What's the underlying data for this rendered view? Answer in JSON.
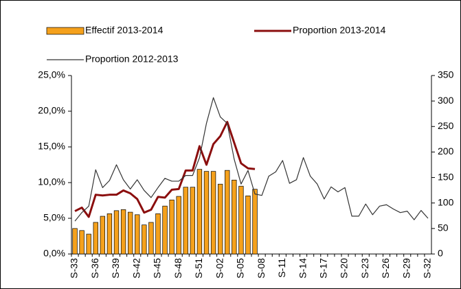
{
  "chart_data": {
    "type": "bar",
    "categories": [
      "S-33",
      null,
      null,
      "S-36",
      null,
      null,
      "S-39",
      null,
      null,
      "S-42",
      null,
      null,
      "S-45",
      null,
      null,
      "S-48",
      null,
      null,
      "S-51",
      null,
      null,
      "S-02",
      null,
      null,
      "S-05",
      null,
      null,
      "S-08",
      null,
      null,
      "S-11",
      null,
      null,
      "S-14",
      null,
      null,
      "S-17",
      null,
      null,
      "S-20",
      null,
      null,
      "S-23",
      null,
      null,
      "S-26",
      null,
      null,
      "S-29",
      null,
      null,
      "S-32"
    ],
    "series": [
      {
        "name": "Effectif 2013-2014",
        "type": "bar",
        "axis": "y2",
        "color": "#f5a11c",
        "values": [
          50,
          46,
          39,
          62,
          74,
          79,
          85,
          87,
          82,
          77,
          57,
          62,
          79,
          94,
          106,
          113,
          131,
          131,
          166,
          162,
          162,
          137,
          164,
          145,
          133,
          114,
          127,
          null,
          null,
          null,
          null,
          null,
          null,
          null,
          null,
          null,
          null,
          null,
          null,
          null,
          null,
          null,
          null,
          null,
          null,
          null,
          null,
          null,
          null,
          null,
          null,
          null
        ]
      },
      {
        "name": "Proportion 2013-2014",
        "type": "line",
        "color": "#8b0e0e",
        "values": [
          6.0,
          6.5,
          5.2,
          8.3,
          8.2,
          8.3,
          8.3,
          8.9,
          8.5,
          7.7,
          5.8,
          6.2,
          8.0,
          7.9,
          9.0,
          9.1,
          11.7,
          11.7,
          15.1,
          12.5,
          15.4,
          16.5,
          18.5,
          15.6,
          12.7,
          12.0,
          11.9,
          null,
          null,
          null,
          null,
          null,
          null,
          null,
          null,
          null,
          null,
          null,
          null,
          null,
          null,
          null,
          null,
          null,
          null,
          null,
          null,
          null,
          null,
          null,
          null,
          null
        ]
      },
      {
        "name": "Proportion 2012-2013",
        "type": "line",
        "color": "#333333",
        "values": [
          4.6,
          5.8,
          6.7,
          11.8,
          9.3,
          10.3,
          12.5,
          10.4,
          9.1,
          10.4,
          8.9,
          7.9,
          9.3,
          10.6,
          10.2,
          10.2,
          11.0,
          11.0,
          13.5,
          18.3,
          21.9,
          19.2,
          18.3,
          13.3,
          9.8,
          11.7,
          8.4,
          8.2,
          10.9,
          11.5,
          13.1,
          9.9,
          10.4,
          13.5,
          10.9,
          9.8,
          7.7,
          9.4,
          8.7,
          9.3,
          5.3,
          5.3,
          7.0,
          5.5,
          6.7,
          6.9,
          6.3,
          5.8,
          6.0,
          4.8,
          6.1,
          5.0
        ]
      }
    ],
    "ylim": [
      0,
      25
    ],
    "yticks": [
      {
        "value": 0,
        "label": "0,0%"
      },
      {
        "value": 5,
        "label": "5,0%"
      },
      {
        "value": 10,
        "label": "10,0%"
      },
      {
        "value": 15,
        "label": "15,0%"
      },
      {
        "value": 20,
        "label": "20,0%"
      },
      {
        "value": 25,
        "label": "25,0%"
      }
    ],
    "y2lim": [
      0,
      350
    ],
    "y2ticks": [
      0,
      50,
      100,
      150,
      200,
      250,
      300,
      350
    ],
    "grid": false
  }
}
